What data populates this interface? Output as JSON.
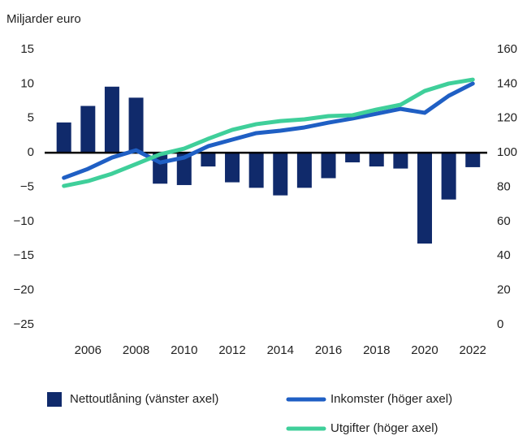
{
  "chart_data": {
    "type": "bar-line",
    "y_label": "Miljarder euro",
    "x": [
      2005,
      2006,
      2007,
      2008,
      2009,
      2010,
      2011,
      2012,
      2013,
      2014,
      2015,
      2016,
      2017,
      2018,
      2019,
      2020,
      2021,
      2022
    ],
    "xlim": [
      2004.2,
      2022.6
    ],
    "xticks": [
      2006,
      2008,
      2010,
      2012,
      2014,
      2016,
      2018,
      2020,
      2022
    ],
    "ylim": [
      -25,
      15
    ],
    "yticks": [
      15,
      10,
      5,
      0,
      {
        "value": -5,
        "label": "−5"
      },
      {
        "value": -10,
        "label": "−10"
      },
      {
        "value": -15,
        "label": "−15"
      },
      {
        "value": -20,
        "label": "−20"
      },
      {
        "value": -25,
        "label": "−25"
      }
    ],
    "y2lim": [
      0,
      160
    ],
    "y2ticks": [
      160,
      140,
      120,
      100,
      80,
      60,
      40,
      20,
      0
    ],
    "series": [
      {
        "name": "Nettoutlåning (vänster axel)",
        "type": "bar",
        "color": "#102a6b",
        "values": [
          4.4,
          6.8,
          9.6,
          8.0,
          -4.5,
          -4.7,
          -2.0,
          -4.3,
          -5.1,
          -6.2,
          -5.1,
          -3.7,
          -1.4,
          -2.0,
          -2.3,
          -13.2,
          -6.8,
          -2.1
        ]
      },
      {
        "name": "Inkomster (höger axel)",
        "type": "line",
        "axis": "y2",
        "color": "#1f5fc4",
        "values": [
          85.4,
          90.6,
          97.2,
          101.4,
          94.3,
          97.2,
          103.8,
          107.6,
          111.4,
          112.8,
          114.7,
          117.5,
          119.9,
          122.7,
          125.5,
          123.2,
          133.1,
          140.2
        ]
      },
      {
        "name": "Utgifter (höger axel)",
        "type": "line",
        "axis": "y2",
        "color": "#3fcf9a",
        "values": [
          80.7,
          83.5,
          87.8,
          93.4,
          99.1,
          102.4,
          108.1,
          113.3,
          116.6,
          118.4,
          119.4,
          121.3,
          121.8,
          125.1,
          127.9,
          135.9,
          140.2,
          142.5
        ]
      }
    ]
  }
}
